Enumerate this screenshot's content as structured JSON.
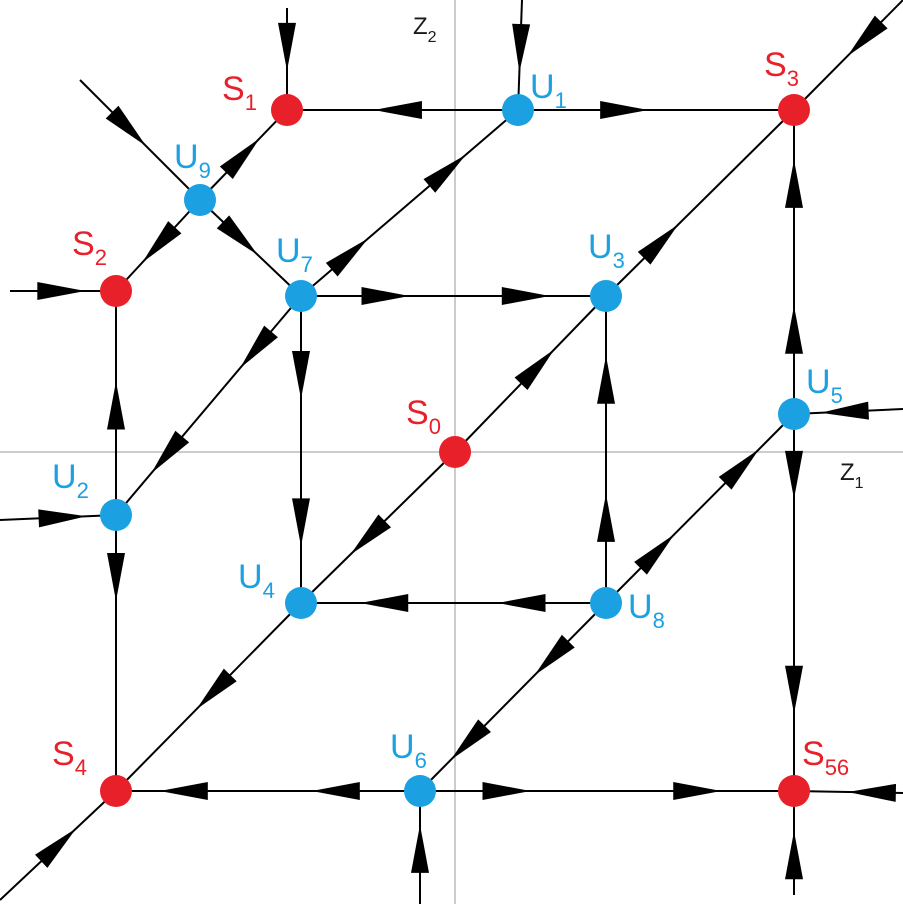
{
  "axes": {
    "z1": {
      "base": "Z",
      "sub": "1"
    },
    "z2": {
      "base": "Z",
      "sub": "2"
    }
  },
  "colors": {
    "stable": "#e8202a",
    "unstable": "#1ba1e2",
    "line": "#000000",
    "axis": "#9a9a9a"
  },
  "stable_points": [
    {
      "id": "S0",
      "base": "S",
      "sub": "0"
    },
    {
      "id": "S1",
      "base": "S",
      "sub": "1"
    },
    {
      "id": "S2",
      "base": "S",
      "sub": "2"
    },
    {
      "id": "S3",
      "base": "S",
      "sub": "3"
    },
    {
      "id": "S4",
      "base": "S",
      "sub": "4"
    },
    {
      "id": "S56",
      "base": "S",
      "sub": "56"
    }
  ],
  "unstable_points": [
    {
      "id": "U1",
      "base": "U",
      "sub": "1"
    },
    {
      "id": "U2",
      "base": "U",
      "sub": "2"
    },
    {
      "id": "U3",
      "base": "U",
      "sub": "3"
    },
    {
      "id": "U4",
      "base": "U",
      "sub": "4"
    },
    {
      "id": "U5",
      "base": "U",
      "sub": "5"
    },
    {
      "id": "U6",
      "base": "U",
      "sub": "6"
    },
    {
      "id": "U7",
      "base": "U",
      "sub": "7"
    },
    {
      "id": "U8",
      "base": "U",
      "sub": "8"
    },
    {
      "id": "U9",
      "base": "U",
      "sub": "9"
    }
  ],
  "flows": [
    {
      "from": "U1",
      "to": "S1"
    },
    {
      "from": "U1",
      "to": "S3"
    },
    {
      "from": "U7",
      "to": "U3"
    },
    {
      "from": "U7",
      "to": "U4"
    },
    {
      "from": "U7",
      "to": "U1"
    },
    {
      "from": "U7",
      "to": "U2"
    },
    {
      "from": "U9",
      "to": "S1"
    },
    {
      "from": "U9",
      "to": "S2"
    },
    {
      "from": "U9",
      "to": "U7"
    },
    {
      "from": "U2",
      "to": "S2"
    },
    {
      "from": "U2",
      "to": "S4"
    },
    {
      "from": "S0",
      "to": "U3"
    },
    {
      "from": "U3",
      "to": "S3"
    },
    {
      "from": "S0",
      "to": "U4"
    },
    {
      "from": "U4",
      "to": "S4"
    },
    {
      "from": "U8",
      "to": "U4"
    },
    {
      "from": "U8",
      "to": "U3"
    },
    {
      "from": "U8",
      "to": "U5"
    },
    {
      "from": "U8",
      "to": "U6"
    },
    {
      "from": "U5",
      "to": "S3"
    },
    {
      "from": "U5",
      "to": "S56"
    },
    {
      "from": "U6",
      "to": "S4"
    },
    {
      "from": "U6",
      "to": "S56"
    },
    {
      "from": "outside",
      "to": "U1"
    },
    {
      "from": "outside",
      "to": "S1"
    },
    {
      "from": "outside",
      "to": "S2"
    },
    {
      "from": "outside",
      "to": "U2"
    },
    {
      "from": "outside",
      "to": "U5"
    },
    {
      "from": "outside",
      "to": "U6"
    },
    {
      "from": "outside",
      "to": "S56"
    },
    {
      "from": "outside",
      "to": "S3"
    },
    {
      "from": "outside",
      "to": "S4"
    },
    {
      "from": "outside",
      "to": "U9"
    }
  ]
}
